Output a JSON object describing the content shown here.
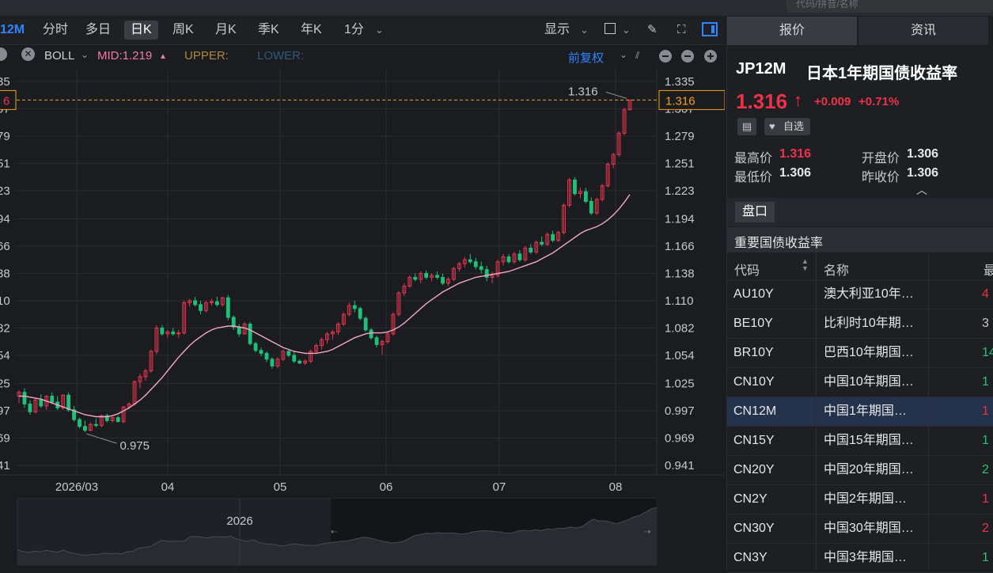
{
  "top_search": {
    "placeholder": "代码/拼音/名称"
  },
  "toolbar": {
    "code": "12M",
    "periods": [
      "分时",
      "多日",
      "日K",
      "周K",
      "月K",
      "季K",
      "年K",
      "1分"
    ],
    "active_period": "日K",
    "display_label": "显示",
    "period_dropdown_icon": "chevron-down-icon"
  },
  "indicator_bar": {
    "indicator": "BOLL",
    "mid": "MID:1.219",
    "upper": "UPPER:",
    "lower": "LOWER:",
    "adjust": "前复权",
    "colors": {
      "mid": "#f27ba5",
      "upper": "#b0883a",
      "lower": "#2f5a80"
    }
  },
  "chart_data": {
    "type": "candlestick",
    "x_tick_labels": [
      "2026/03",
      "04",
      "05",
      "06",
      "07",
      "08"
    ],
    "y_tick_labels": [
      "1.335",
      "1.307",
      "1.279",
      "1.251",
      "1.223",
      "1.194",
      "1.166",
      "1.138",
      "1.110",
      "1.082",
      "1.054",
      "1.025",
      "0.997",
      "0.969",
      "0.941"
    ],
    "ylim": [
      0.941,
      1.335
    ],
    "current_price_label": "1.316",
    "left_price_label": "6",
    "high_annotation": "1.316",
    "low_annotation": "0.975",
    "colors": {
      "up": "#e8364f",
      "down": "#1fc17a",
      "mid_line": "#f0a8c6",
      "price_line": "#f0a21c"
    },
    "ohlc": [
      [
        1.012,
        1.018,
        1.005,
        1.016
      ],
      [
        1.016,
        1.02,
        1.0,
        1.004
      ],
      [
        1.004,
        1.008,
        0.993,
        0.996
      ],
      [
        0.996,
        1.01,
        0.994,
        1.008
      ],
      [
        1.008,
        1.014,
        1.0,
        1.002
      ],
      [
        1.002,
        1.013,
        0.998,
        1.012
      ],
      [
        1.012,
        1.016,
        1.004,
        1.006
      ],
      [
        1.006,
        1.012,
        0.998,
        1.0
      ],
      [
        1.0,
        1.014,
        0.998,
        1.013
      ],
      [
        1.013,
        1.016,
        0.996,
        0.998
      ],
      [
        0.998,
        1.002,
        0.986,
        0.988
      ],
      [
        0.988,
        0.99,
        0.979,
        0.981
      ],
      [
        0.981,
        0.987,
        0.975,
        0.977
      ],
      [
        0.977,
        0.985,
        0.976,
        0.983
      ],
      [
        0.983,
        0.989,
        0.98,
        0.982
      ],
      [
        0.982,
        0.993,
        0.98,
        0.992
      ],
      [
        0.992,
        0.994,
        0.985,
        0.987
      ],
      [
        0.987,
        0.991,
        0.985,
        0.99
      ],
      [
        0.99,
        0.992,
        0.985,
        0.986
      ],
      [
        0.986,
        1.002,
        0.984,
        1.001
      ],
      [
        1.001,
        1.006,
        0.999,
        1.004
      ],
      [
        1.004,
        1.028,
        1.002,
        1.027
      ],
      [
        1.027,
        1.035,
        1.02,
        1.032
      ],
      [
        1.032,
        1.04,
        1.028,
        1.038
      ],
      [
        1.038,
        1.06,
        1.036,
        1.058
      ],
      [
        1.058,
        1.085,
        1.055,
        1.082
      ],
      [
        1.082,
        1.085,
        1.074,
        1.076
      ],
      [
        1.076,
        1.08,
        1.072,
        1.078
      ],
      [
        1.078,
        1.082,
        1.074,
        1.076
      ],
      [
        1.076,
        1.08,
        1.072,
        1.077
      ],
      [
        1.077,
        1.11,
        1.075,
        1.108
      ],
      [
        1.108,
        1.112,
        1.104,
        1.11
      ],
      [
        1.11,
        1.114,
        1.104,
        1.106
      ],
      [
        1.106,
        1.11,
        1.096,
        1.1
      ],
      [
        1.1,
        1.11,
        1.098,
        1.108
      ],
      [
        1.108,
        1.112,
        1.105,
        1.109
      ],
      [
        1.109,
        1.114,
        1.104,
        1.106
      ],
      [
        1.106,
        1.114,
        1.104,
        1.113
      ],
      [
        1.113,
        1.116,
        1.09,
        1.093
      ],
      [
        1.093,
        1.095,
        1.08,
        1.083
      ],
      [
        1.083,
        1.086,
        1.073,
        1.076
      ],
      [
        1.076,
        1.088,
        1.075,
        1.086
      ],
      [
        1.086,
        1.088,
        1.064,
        1.066
      ],
      [
        1.066,
        1.068,
        1.057,
        1.059
      ],
      [
        1.059,
        1.062,
        1.053,
        1.056
      ],
      [
        1.056,
        1.058,
        1.047,
        1.05
      ],
      [
        1.05,
        1.052,
        1.04,
        1.043
      ],
      [
        1.043,
        1.052,
        1.041,
        1.05
      ],
      [
        1.05,
        1.06,
        1.048,
        1.058
      ],
      [
        1.058,
        1.06,
        1.052,
        1.054
      ],
      [
        1.054,
        1.058,
        1.046,
        1.048
      ],
      [
        1.048,
        1.05,
        1.045,
        1.046
      ],
      [
        1.046,
        1.05,
        1.044,
        1.048
      ],
      [
        1.048,
        1.06,
        1.046,
        1.058
      ],
      [
        1.058,
        1.066,
        1.056,
        1.064
      ],
      [
        1.064,
        1.072,
        1.06,
        1.07
      ],
      [
        1.07,
        1.078,
        1.066,
        1.076
      ],
      [
        1.076,
        1.08,
        1.07,
        1.078
      ],
      [
        1.078,
        1.088,
        1.075,
        1.086
      ],
      [
        1.086,
        1.098,
        1.084,
        1.096
      ],
      [
        1.096,
        1.108,
        1.094,
        1.105
      ],
      [
        1.105,
        1.11,
        1.098,
        1.102
      ],
      [
        1.102,
        1.104,
        1.09,
        1.092
      ],
      [
        1.092,
        1.094,
        1.078,
        1.08
      ],
      [
        1.08,
        1.082,
        1.07,
        1.072
      ],
      [
        1.072,
        1.074,
        1.062,
        1.065
      ],
      [
        1.065,
        1.07,
        1.055,
        1.068
      ],
      [
        1.068,
        1.078,
        1.066,
        1.076
      ],
      [
        1.076,
        1.098,
        1.074,
        1.096
      ],
      [
        1.096,
        1.12,
        1.094,
        1.118
      ],
      [
        1.118,
        1.128,
        1.115,
        1.125
      ],
      [
        1.125,
        1.136,
        1.123,
        1.134
      ],
      [
        1.134,
        1.138,
        1.13,
        1.132
      ],
      [
        1.132,
        1.14,
        1.128,
        1.138
      ],
      [
        1.138,
        1.141,
        1.132,
        1.134
      ],
      [
        1.134,
        1.138,
        1.13,
        1.136
      ],
      [
        1.136,
        1.14,
        1.132,
        1.134
      ],
      [
        1.134,
        1.138,
        1.126,
        1.128
      ],
      [
        1.128,
        1.134,
        1.125,
        1.132
      ],
      [
        1.132,
        1.145,
        1.13,
        1.143
      ],
      [
        1.143,
        1.15,
        1.14,
        1.148
      ],
      [
        1.148,
        1.155,
        1.144,
        1.152
      ],
      [
        1.152,
        1.158,
        1.148,
        1.15
      ],
      [
        1.15,
        1.154,
        1.142,
        1.145
      ],
      [
        1.145,
        1.15,
        1.138,
        1.142
      ],
      [
        1.142,
        1.146,
        1.13,
        1.134
      ],
      [
        1.134,
        1.14,
        1.128,
        1.136
      ],
      [
        1.136,
        1.152,
        1.134,
        1.15
      ],
      [
        1.15,
        1.158,
        1.146,
        1.155
      ],
      [
        1.155,
        1.158,
        1.148,
        1.15
      ],
      [
        1.15,
        1.16,
        1.148,
        1.158
      ],
      [
        1.158,
        1.162,
        1.15,
        1.152
      ],
      [
        1.152,
        1.166,
        1.15,
        1.164
      ],
      [
        1.164,
        1.168,
        1.158,
        1.16
      ],
      [
        1.16,
        1.172,
        1.158,
        1.17
      ],
      [
        1.17,
        1.176,
        1.166,
        1.168
      ],
      [
        1.168,
        1.18,
        1.166,
        1.178
      ],
      [
        1.178,
        1.182,
        1.17,
        1.172
      ],
      [
        1.172,
        1.182,
        1.17,
        1.18
      ],
      [
        1.18,
        1.21,
        1.178,
        1.208
      ],
      [
        1.208,
        1.236,
        1.206,
        1.234
      ],
      [
        1.234,
        1.237,
        1.218,
        1.22
      ],
      [
        1.22,
        1.226,
        1.215,
        1.222
      ],
      [
        1.222,
        1.226,
        1.21,
        1.212
      ],
      [
        1.212,
        1.216,
        1.198,
        1.2
      ],
      [
        1.2,
        1.216,
        1.198,
        1.214
      ],
      [
        1.214,
        1.23,
        1.212,
        1.228
      ],
      [
        1.228,
        1.252,
        1.226,
        1.25
      ],
      [
        1.25,
        1.262,
        1.246,
        1.26
      ],
      [
        1.26,
        1.284,
        1.258,
        1.282
      ],
      [
        1.282,
        1.308,
        1.28,
        1.306
      ],
      [
        1.306,
        1.316,
        1.306,
        1.316
      ]
    ],
    "mid_line": [
      1.012,
      1.012,
      1.011,
      1.01,
      1.009,
      1.007,
      1.005,
      1.003,
      1.001,
      0.999,
      0.997,
      0.995,
      0.993,
      0.992,
      0.991,
      0.991,
      0.991,
      0.992,
      0.994,
      0.997,
      1.0,
      1.004,
      1.008,
      1.013,
      1.019,
      1.025,
      1.031,
      1.038,
      1.045,
      1.052,
      1.058,
      1.064,
      1.069,
      1.073,
      1.077,
      1.08,
      1.082,
      1.083,
      1.084,
      1.084,
      1.083,
      1.082,
      1.08,
      1.077,
      1.074,
      1.071,
      1.068,
      1.065,
      1.062,
      1.06,
      1.058,
      1.057,
      1.056,
      1.056,
      1.056,
      1.057,
      1.058,
      1.06,
      1.063,
      1.066,
      1.069,
      1.072,
      1.074,
      1.076,
      1.077,
      1.077,
      1.077,
      1.078,
      1.08,
      1.083,
      1.087,
      1.092,
      1.097,
      1.102,
      1.107,
      1.111,
      1.115,
      1.119,
      1.122,
      1.125,
      1.128,
      1.13,
      1.132,
      1.134,
      1.135,
      1.136,
      1.137,
      1.138,
      1.139,
      1.14,
      1.142,
      1.144,
      1.146,
      1.148,
      1.15,
      1.153,
      1.156,
      1.159,
      1.163,
      1.167,
      1.171,
      1.175,
      1.179,
      1.182,
      1.184,
      1.186,
      1.189,
      1.193,
      1.198,
      1.204,
      1.211,
      1.219
    ]
  },
  "navigator": {
    "year_label": "2026"
  },
  "right_panel": {
    "tabs": [
      "报价",
      "资讯"
    ],
    "symbol_code": "JP12M",
    "symbol_name": "日本1年期国债收益率",
    "price": "1.316",
    "arrow": "↑",
    "change": "+0.009",
    "change_pct": "+0.71%",
    "watchlist_label": "自选",
    "stats": {
      "high_label": "最高价",
      "high": "1.316",
      "low_label": "最低价",
      "low": "1.306",
      "open_label": "开盘价",
      "open": "1.306",
      "prev_label": "昨收价",
      "prev": "1.306"
    },
    "section_tab": "盘口",
    "section_title": "重要国债收益率",
    "columns": {
      "code": "代码",
      "name": "名称",
      "last": "最"
    },
    "rows": [
      {
        "code": "AU10Y",
        "name": "澳大利亚10年…",
        "last": "4",
        "color": "#f0314a"
      },
      {
        "code": "BE10Y",
        "name": "比利时10年期…",
        "last": "3",
        "color": "#c7c8cd"
      },
      {
        "code": "BR10Y",
        "name": "巴西10年期国…",
        "last": "14",
        "color": "#22c278"
      },
      {
        "code": "CN10Y",
        "name": "中国10年期国…",
        "last": "1",
        "color": "#22c278"
      },
      {
        "code": "CN12M",
        "name": "中国1年期国…",
        "last": "1",
        "color": "#f0314a"
      },
      {
        "code": "CN15Y",
        "name": "中国15年期国…",
        "last": "1",
        "color": "#22c278"
      },
      {
        "code": "CN20Y",
        "name": "中国20年期国…",
        "last": "2",
        "color": "#22c278"
      },
      {
        "code": "CN2Y",
        "name": "中国2年期国…",
        "last": "1",
        "color": "#f0314a"
      },
      {
        "code": "CN30Y",
        "name": "中国30年期国…",
        "last": "2",
        "color": "#f0314a"
      },
      {
        "code": "CN3Y",
        "name": "中国3年期国…",
        "last": "1",
        "color": "#22c278"
      }
    ],
    "selected_row": "CN12M"
  }
}
